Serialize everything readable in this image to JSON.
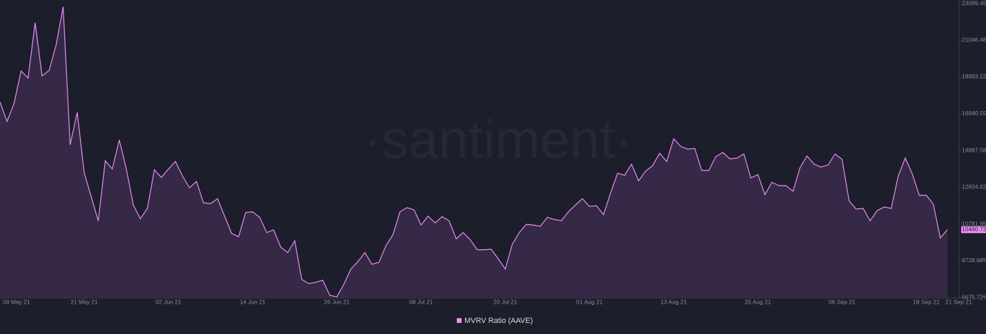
{
  "chart_data": {
    "type": "area",
    "watermark": "·santiment·",
    "x": [
      "2021-05-09",
      "2021-05-10",
      "2021-05-11",
      "2021-05-12",
      "2021-05-13",
      "2021-05-14",
      "2021-05-15",
      "2021-05-16",
      "2021-05-17",
      "2021-05-18",
      "2021-05-19",
      "2021-05-20",
      "2021-05-21",
      "2021-05-22",
      "2021-05-23",
      "2021-05-24",
      "2021-05-25",
      "2021-05-26",
      "2021-05-27",
      "2021-05-28",
      "2021-05-29",
      "2021-05-30",
      "2021-05-31",
      "2021-06-01",
      "2021-06-02",
      "2021-06-03",
      "2021-06-04",
      "2021-06-05",
      "2021-06-06",
      "2021-06-07",
      "2021-06-08",
      "2021-06-09",
      "2021-06-10",
      "2021-06-11",
      "2021-06-12",
      "2021-06-13",
      "2021-06-14",
      "2021-06-15",
      "2021-06-16",
      "2021-06-17",
      "2021-06-18",
      "2021-06-19",
      "2021-06-20",
      "2021-06-21",
      "2021-06-22",
      "2021-06-23",
      "2021-06-24",
      "2021-06-25",
      "2021-06-26",
      "2021-06-27",
      "2021-06-28",
      "2021-06-29",
      "2021-06-30",
      "2021-07-01",
      "2021-07-02",
      "2021-07-03",
      "2021-07-04",
      "2021-07-05",
      "2021-07-06",
      "2021-07-07",
      "2021-07-08",
      "2021-07-09",
      "2021-07-10",
      "2021-07-11",
      "2021-07-12",
      "2021-07-13",
      "2021-07-14",
      "2021-07-15",
      "2021-07-16",
      "2021-07-17",
      "2021-07-18",
      "2021-07-19",
      "2021-07-20",
      "2021-07-21",
      "2021-07-22",
      "2021-07-23",
      "2021-07-24",
      "2021-07-25",
      "2021-07-26",
      "2021-07-27",
      "2021-07-28",
      "2021-07-29",
      "2021-07-30",
      "2021-07-31",
      "2021-08-01",
      "2021-08-02",
      "2021-08-03",
      "2021-08-04",
      "2021-08-05",
      "2021-08-06",
      "2021-08-07",
      "2021-08-08",
      "2021-08-09",
      "2021-08-10",
      "2021-08-11",
      "2021-08-12",
      "2021-08-13",
      "2021-08-14",
      "2021-08-15",
      "2021-08-16",
      "2021-08-17",
      "2021-08-18",
      "2021-08-19",
      "2021-08-20",
      "2021-08-21",
      "2021-08-22",
      "2021-08-23",
      "2021-08-24",
      "2021-08-25",
      "2021-08-26",
      "2021-08-27",
      "2021-08-28",
      "2021-08-29",
      "2021-08-30",
      "2021-08-31",
      "2021-09-01",
      "2021-09-02",
      "2021-09-03",
      "2021-09-04",
      "2021-09-05",
      "2021-09-06",
      "2021-09-07",
      "2021-09-08",
      "2021-09-09",
      "2021-09-10",
      "2021-09-11",
      "2021-09-12",
      "2021-09-13",
      "2021-09-14",
      "2021-09-15",
      "2021-09-16",
      "2021-09-17",
      "2021-09-18",
      "2021-09-19",
      "2021-09-20",
      "2021-09-21"
    ],
    "series": [
      {
        "name": "MVRV Ratio (AAVE)",
        "color": "#ee8ff2",
        "fill": "#3a2b4c",
        "values": [
          17590,
          16510,
          17510,
          19320,
          18930,
          22020,
          19050,
          19360,
          20790,
          22910,
          15200,
          17010,
          13650,
          12300,
          10960,
          14310,
          13850,
          15470,
          13850,
          11840,
          11070,
          11650,
          13810,
          13380,
          13850,
          14270,
          13460,
          12810,
          13150,
          11960,
          11920,
          12190,
          11220,
          10260,
          10070,
          11420,
          11460,
          11150,
          10300,
          10450,
          9490,
          9180,
          9840,
          7680,
          7450,
          7520,
          7640,
          6790,
          6710,
          7410,
          8260,
          8680,
          9180,
          8530,
          8640,
          9570,
          10180,
          11460,
          11690,
          11570,
          10720,
          11220,
          10840,
          11190,
          10960,
          9950,
          10300,
          9910,
          9340,
          9340,
          9370,
          8830,
          8260,
          9640,
          10300,
          10760,
          10720,
          10650,
          11150,
          11030,
          10960,
          11460,
          11840,
          12190,
          11760,
          11800,
          11300,
          12500,
          13610,
          13500,
          14120,
          13190,
          13730,
          14040,
          14730,
          14270,
          15540,
          15120,
          14960,
          15000,
          13770,
          13770,
          14540,
          14770,
          14420,
          14460,
          14690,
          13350,
          13540,
          12420,
          13110,
          12920,
          12920,
          12610,
          13920,
          14580,
          14120,
          13960,
          14080,
          14690,
          14390,
          12070,
          11610,
          11650,
          10960,
          11530,
          11730,
          11650,
          13460,
          14460,
          13580,
          12380,
          12380,
          11880,
          9990,
          10460.72
        ],
        "last_label": "10460.72%"
      }
    ],
    "xlim": [
      "2021-05-09",
      "2021-09-21"
    ],
    "xticks": [
      {
        "value": "2021-05-09",
        "label": "09 May 21"
      },
      {
        "value": "2021-05-21",
        "label": "21 May 21"
      },
      {
        "value": "2021-06-02",
        "label": "02 Jun 21"
      },
      {
        "value": "2021-06-14",
        "label": "14 Jun 21"
      },
      {
        "value": "2021-06-26",
        "label": "26 Jun 21"
      },
      {
        "value": "2021-07-08",
        "label": "08 Jul 21"
      },
      {
        "value": "2021-07-20",
        "label": "20 Jul 21"
      },
      {
        "value": "2021-08-01",
        "label": "01 Aug 21"
      },
      {
        "value": "2021-08-13",
        "label": "13 Aug 21"
      },
      {
        "value": "2021-08-25",
        "label": "25 Aug 21"
      },
      {
        "value": "2021-09-06",
        "label": "06 Sep 21"
      },
      {
        "value": "2021-09-18",
        "label": "18 Sep 21"
      },
      {
        "value": "2021-09-21",
        "label": "21 Sep 21"
      }
    ],
    "ylim": [
      6675.72,
      23099.45
    ],
    "yticks": [
      {
        "value": 6675.72,
        "label": "6675.72%"
      },
      {
        "value": 8728.68,
        "label": "8728.68%"
      },
      {
        "value": 10781.65,
        "label": "10781.65%"
      },
      {
        "value": 12834.62,
        "label": "12834.62%"
      },
      {
        "value": 14887.58,
        "label": "14887.58%"
      },
      {
        "value": 16940.55,
        "label": "16940.55%"
      },
      {
        "value": 18993.52,
        "label": "18993.52%"
      },
      {
        "value": 21046.48,
        "label": "21046.48%"
      },
      {
        "value": 23099.45,
        "label": "23099.45%"
      }
    ],
    "y_axis_side": "right"
  }
}
